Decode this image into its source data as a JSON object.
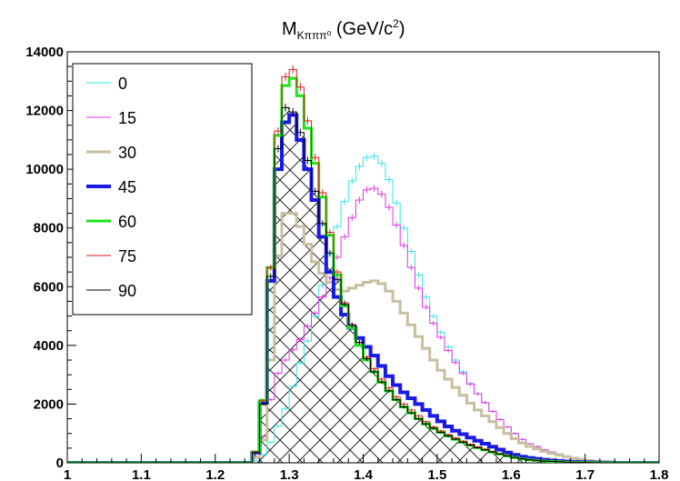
{
  "chart_data": {
    "type": "line",
    "title": "M",
    "title_subscript": "Kπππ⁰",
    "title_suffix": " (GeV/c",
    "title_superscript": "2",
    "title_close": ")",
    "xlim": [
      1.0,
      1.8
    ],
    "ylim": [
      0,
      14000
    ],
    "x_ticks": [
      "1",
      "1.1",
      "1.2",
      "1.3",
      "1.4",
      "1.5",
      "1.6",
      "1.7",
      "1.8"
    ],
    "x_tick_values": [
      1.0,
      1.1,
      1.2,
      1.3,
      1.4,
      1.5,
      1.6,
      1.7,
      1.8
    ],
    "y_ticks": [
      "0",
      "2000",
      "4000",
      "6000",
      "8000",
      "10000",
      "12000",
      "14000"
    ],
    "y_tick_values": [
      0,
      2000,
      4000,
      6000,
      8000,
      10000,
      12000,
      14000
    ],
    "grid": false,
    "legend_position": "top-left",
    "bin_width": 0.01,
    "hatched_series": "90",
    "series": [
      {
        "name": "0",
        "color": "#33e6e6",
        "width": 1,
        "x": [
          1.25,
          1.26,
          1.27,
          1.28,
          1.29,
          1.3,
          1.31,
          1.32,
          1.33,
          1.34,
          1.35,
          1.36,
          1.37,
          1.38,
          1.39,
          1.4,
          1.41,
          1.42,
          1.43,
          1.44,
          1.45,
          1.46,
          1.47,
          1.48,
          1.49,
          1.5,
          1.52,
          1.55,
          1.58,
          1.6,
          1.62,
          1.65,
          1.68,
          1.7,
          1.72,
          1.75,
          1.78
        ],
        "y": [
          0,
          150,
          400,
          1000,
          1500,
          2200,
          3000,
          3800,
          4500,
          5500,
          6600,
          7600,
          8500,
          9300,
          9900,
          10300,
          10500,
          10400,
          10000,
          9300,
          8400,
          7600,
          6800,
          6000,
          5300,
          4700,
          3700,
          2500,
          1600,
          1100,
          700,
          400,
          200,
          100,
          40,
          10,
          0
        ]
      },
      {
        "name": "15",
        "color": "#e633e6",
        "width": 1,
        "x": [
          1.25,
          1.26,
          1.27,
          1.28,
          1.29,
          1.3,
          1.31,
          1.32,
          1.33,
          1.34,
          1.35,
          1.36,
          1.37,
          1.38,
          1.39,
          1.4,
          1.41,
          1.42,
          1.43,
          1.44,
          1.45,
          1.46,
          1.47,
          1.48,
          1.49,
          1.5,
          1.52,
          1.55,
          1.58,
          1.6,
          1.62,
          1.65,
          1.68,
          1.7,
          1.72,
          1.75,
          1.78
        ],
        "y": [
          0,
          300,
          1500,
          2800,
          3300,
          3700,
          4000,
          4400,
          4900,
          5300,
          6000,
          6600,
          7400,
          8000,
          8700,
          9200,
          9400,
          9300,
          9000,
          8400,
          7800,
          7000,
          6300,
          5600,
          5000,
          4500,
          3600,
          2500,
          1600,
          1100,
          700,
          400,
          200,
          100,
          40,
          10,
          0
        ]
      },
      {
        "name": "30",
        "color": "#c8bea0",
        "width": 3,
        "x": [
          1.25,
          1.26,
          1.27,
          1.28,
          1.29,
          1.3,
          1.31,
          1.32,
          1.33,
          1.34,
          1.35,
          1.36,
          1.37,
          1.38,
          1.39,
          1.4,
          1.41,
          1.42,
          1.43,
          1.44,
          1.45,
          1.46,
          1.47,
          1.48,
          1.49,
          1.5,
          1.52,
          1.55,
          1.58,
          1.6,
          1.62,
          1.65,
          1.68,
          1.7,
          1.72,
          1.75,
          1.78
        ],
        "y": [
          0,
          350,
          1200,
          5800,
          8300,
          8700,
          8300,
          7800,
          7100,
          6600,
          6300,
          6000,
          5800,
          5900,
          6000,
          6100,
          6200,
          6200,
          6000,
          5700,
          5300,
          4900,
          4500,
          4100,
          3700,
          3300,
          2700,
          1900,
          1300,
          900,
          600,
          350,
          180,
          90,
          40,
          10,
          0
        ]
      },
      {
        "name": "45",
        "color": "#1a1ae6",
        "width": 4,
        "x": [
          1.25,
          1.26,
          1.27,
          1.28,
          1.29,
          1.3,
          1.31,
          1.32,
          1.33,
          1.34,
          1.35,
          1.36,
          1.37,
          1.38,
          1.39,
          1.4,
          1.41,
          1.42,
          1.43,
          1.44,
          1.45,
          1.46,
          1.47,
          1.48,
          1.49,
          1.5,
          1.52,
          1.55,
          1.58,
          1.6,
          1.62,
          1.65,
          1.68,
          1.7,
          1.72,
          1.75,
          1.78
        ],
        "y": [
          0,
          700,
          3400,
          9000,
          11000,
          12200,
          11500,
          10500,
          9500,
          8400,
          7000,
          6000,
          5300,
          4800,
          4400,
          4100,
          3800,
          3500,
          3100,
          2800,
          2500,
          2300,
          2100,
          1900,
          1700,
          1500,
          1150,
          800,
          500,
          300,
          180,
          90,
          40,
          20,
          10,
          0,
          0
        ]
      },
      {
        "name": "60",
        "color": "#1ae61a",
        "width": 3,
        "x": [
          1.25,
          1.26,
          1.27,
          1.28,
          1.29,
          1.3,
          1.31,
          1.32,
          1.33,
          1.34,
          1.35,
          1.36,
          1.37,
          1.38,
          1.39,
          1.4,
          1.41,
          1.42,
          1.43,
          1.44,
          1.45,
          1.46,
          1.47,
          1.48,
          1.49,
          1.5,
          1.52,
          1.55,
          1.58,
          1.6,
          1.62,
          1.65,
          1.68,
          1.7,
          1.72,
          1.75,
          1.78
        ],
        "y": [
          0,
          750,
          3500,
          9800,
          12500,
          13200,
          13000,
          12000,
          10800,
          9600,
          8500,
          7000,
          5800,
          4900,
          4300,
          3700,
          3300,
          2900,
          2600,
          2300,
          2000,
          1800,
          1600,
          1400,
          1250,
          1100,
          850,
          550,
          330,
          200,
          110,
          50,
          20,
          10,
          0,
          0,
          0
        ]
      },
      {
        "name": "75",
        "color": "#e61a1a",
        "width": 1,
        "x": [
          1.25,
          1.26,
          1.27,
          1.28,
          1.29,
          1.3,
          1.31,
          1.32,
          1.33,
          1.34,
          1.35,
          1.36,
          1.37,
          1.38,
          1.39,
          1.4,
          1.41,
          1.42,
          1.43,
          1.44,
          1.45,
          1.46,
          1.47,
          1.48,
          1.49,
          1.5,
          1.52,
          1.55,
          1.58,
          1.6,
          1.62,
          1.65,
          1.68,
          1.7,
          1.72,
          1.75,
          1.78
        ],
        "y": [
          0,
          750,
          3500,
          9800,
          12800,
          13500,
          13300,
          12300,
          11000,
          9800,
          8600,
          7100,
          5900,
          5000,
          4400,
          3800,
          3400,
          3000,
          2700,
          2400,
          2100,
          1900,
          1700,
          1500,
          1300,
          1150,
          900,
          580,
          350,
          210,
          120,
          55,
          25,
          10,
          0,
          0,
          0
        ]
      },
      {
        "name": "90",
        "color": "#000000",
        "width": 1,
        "x": [
          1.25,
          1.26,
          1.27,
          1.28,
          1.29,
          1.3,
          1.31,
          1.32,
          1.33,
          1.34,
          1.35,
          1.36,
          1.37,
          1.38,
          1.39,
          1.4,
          1.41,
          1.42,
          1.43,
          1.44,
          1.45,
          1.46,
          1.47,
          1.48,
          1.49,
          1.5,
          1.52,
          1.55,
          1.58,
          1.6,
          1.62,
          1.65,
          1.68,
          1.7,
          1.72,
          1.75,
          1.78
        ],
        "y": [
          0,
          700,
          3300,
          9400,
          12000,
          12200,
          11700,
          10800,
          9800,
          8700,
          7600,
          6700,
          5800,
          5000,
          4400,
          3800,
          3300,
          2900,
          2600,
          2300,
          2000,
          1800,
          1600,
          1400,
          1250,
          1100,
          850,
          550,
          330,
          200,
          110,
          50,
          20,
          10,
          0,
          0,
          0
        ]
      }
    ]
  }
}
